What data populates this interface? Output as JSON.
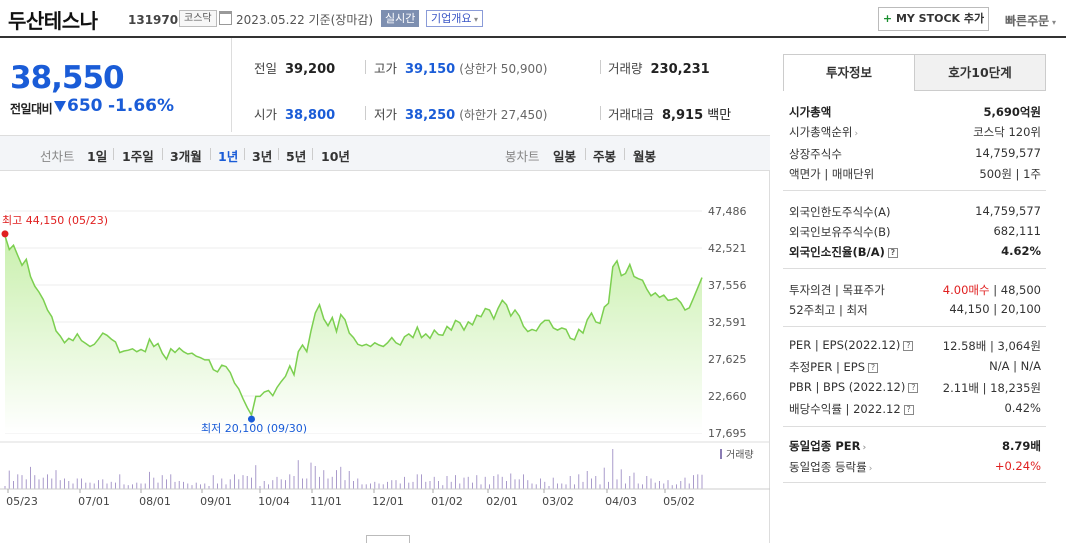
{
  "header": {
    "name": "두산테스나",
    "code": "131970",
    "market_badge": "코스닥",
    "date": "2023.05.22",
    "date_suffix": "기준(장마감)",
    "live_badge": "실시간",
    "corp_button": "기업개요",
    "mystock_button": "MY STOCK 추가",
    "quick_order": "빠른주문"
  },
  "price": {
    "current": "38,550",
    "change_label": "전일대비",
    "change_value": "650",
    "change_pct": "-1.66%",
    "color_down": "#1a5cd7"
  },
  "info": {
    "prev_label": "전일",
    "prev_value": "39,200",
    "high_label": "고가",
    "high_value": "39,150",
    "upper_limit": "(상한가 50,900)",
    "volume_label": "거래량",
    "volume_value": "230,231",
    "open_label": "시가",
    "open_value": "38,800",
    "low_label": "저가",
    "low_value": "38,250",
    "lower_limit": "(하한가 27,450)",
    "amount_label": "거래대금",
    "amount_value": "8,915",
    "amount_unit": "백만"
  },
  "period_bar": {
    "line_label": "선차트",
    "line_items": [
      "1일",
      "1주일",
      "3개월",
      "1년",
      "3년",
      "5년",
      "10년"
    ],
    "active": "1년",
    "candle_label": "봉차트",
    "candle_items": [
      "일봉",
      "주봉",
      "월봉"
    ]
  },
  "chart_data": {
    "type": "area",
    "y_ticks": [
      "47,486",
      "42,521",
      "37,556",
      "32,591",
      "27,625",
      "22,660",
      "17,695"
    ],
    "ylim": [
      17695,
      47486
    ],
    "x_ticks": [
      "05/23",
      "07/01",
      "08/01",
      "09/01",
      "10/04",
      "11/01",
      "12/01",
      "01/02",
      "02/01",
      "03/02",
      "04/03",
      "05/02"
    ],
    "high_label": "최고 44,150 (05/23)",
    "low_label": "최저 20,100 (09/30)",
    "volume_legend": "거래량",
    "line_color": "#7ccf50",
    "fill_color": "#c9f0ad",
    "values": [
      44150,
      42300,
      42900,
      41500,
      40200,
      41000,
      38700,
      37400,
      36600,
      35600,
      34200,
      33300,
      31400,
      30700,
      29800,
      30400,
      30100,
      31000,
      30100,
      29700,
      29300,
      29600,
      30300,
      31100,
      30800,
      30300,
      29900,
      28500,
      28700,
      28800,
      29000,
      28600,
      28900,
      28600,
      30300,
      29300,
      29700,
      28400,
      27600,
      29000,
      28500,
      29100,
      28600,
      28300,
      28400,
      28000,
      27800,
      27500,
      27500,
      26200,
      25900,
      26800,
      26600,
      25800,
      24400,
      23600,
      22300,
      21100,
      20100,
      22600,
      22600,
      23200,
      23400,
      22700,
      23800,
      24600,
      25300,
      26700,
      25500,
      28600,
      29500,
      28600,
      31400,
      33800,
      34900,
      33000,
      32100,
      33200,
      31300,
      33600,
      32900,
      31100,
      30500,
      29600,
      29400,
      29600,
      29300,
      29800,
      29500,
      29300,
      29800,
      30500,
      29800,
      29500,
      30600,
      31000,
      30500,
      31900,
      30500,
      31000,
      30400,
      31500,
      30900,
      30800,
      32000,
      31500,
      32800,
      32500,
      31500,
      32600,
      32200,
      33500,
      33300,
      34400,
      34200,
      33000,
      34400,
      35500,
      34900,
      33400,
      34200,
      33400,
      32000,
      31300,
      31600,
      31400,
      32300,
      32800,
      32800,
      31800,
      31500,
      31800,
      31600,
      30400,
      30200,
      31600,
      31100,
      32900,
      33800,
      32600,
      32400,
      34600,
      35100,
      40000,
      40800,
      38800,
      39100,
      40300,
      38700,
      38400,
      38200,
      37000,
      36100,
      36500,
      35900,
      36200,
      35500,
      35600,
      35800,
      35200,
      34200,
      34500,
      35800,
      37200,
      38550
    ]
  },
  "side": {
    "tab_invest": "투자정보",
    "tab_hoga": "호가10단계",
    "rows1": [
      {
        "k": "시가총액",
        "v": "5,690억원"
      },
      {
        "k": "시가총액순위",
        "v": "코스닥 120위"
      },
      {
        "k": "상장주식수",
        "v": "14,759,577"
      },
      {
        "k": "액면가 | 매매단위",
        "v": "500원 | 1주"
      }
    ],
    "rows2": [
      {
        "k": "외국인한도주식수(A)",
        "v": "14,759,577"
      },
      {
        "k": "외국인보유주식수(B)",
        "v": "682,111"
      },
      {
        "k": "외국인소진율(B/A)",
        "v": "4.62%"
      }
    ],
    "rows3": [
      {
        "k": "투자의견 | 목표주가",
        "v_red": "4.00매수",
        "v": "| 48,500"
      },
      {
        "k": "52주최고 | 최저",
        "v": "44,150 | 20,100"
      }
    ],
    "rows4": [
      {
        "k": "PER | EPS(2022.12)",
        "v": "12.58배 | 3,064원"
      },
      {
        "k": "추정PER | EPS",
        "v": "N/A | N/A"
      },
      {
        "k": "PBR | BPS (2022.12)",
        "v": "2.11배 | 18,235원"
      },
      {
        "k": "배당수익률 | 2022.12",
        "v": "0.42%"
      }
    ],
    "rows5": [
      {
        "k": "동일업종 PER",
        "v": "8.79배"
      },
      {
        "k": "동일업종 등락률",
        "v": "+0.24%"
      }
    ]
  }
}
